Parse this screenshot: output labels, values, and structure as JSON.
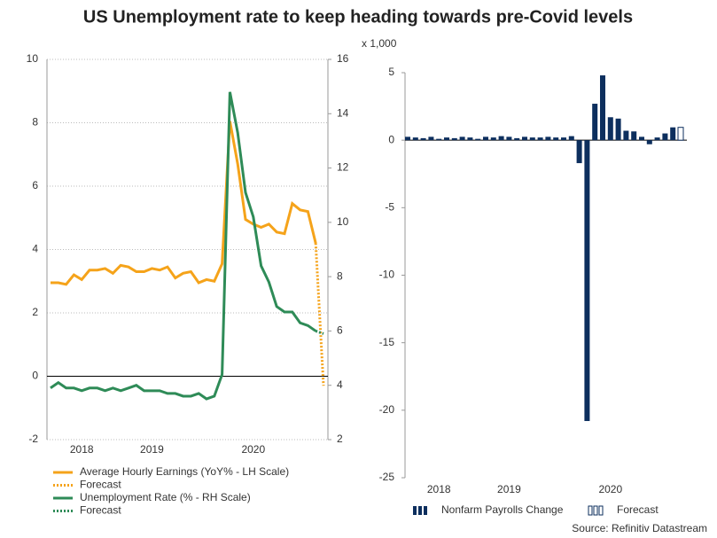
{
  "title": "US Unemployment rate to keep heading towards pre-Covid levels",
  "source": "Source: Refinitiv Datastream",
  "chart_data": [
    {
      "type": "line",
      "categories": [
        null,
        null,
        null,
        null,
        "2018",
        null,
        null,
        null,
        null,
        null,
        null,
        null,
        null,
        "2019",
        null,
        null,
        null,
        null,
        null,
        null,
        null,
        null,
        null,
        null,
        null,
        null,
        "2020",
        null,
        null,
        null,
        null,
        null,
        null,
        null,
        null,
        null
      ],
      "ylim": [
        -2,
        10
      ],
      "yticks": [
        -2,
        0,
        2,
        4,
        6,
        8,
        10
      ],
      "y2lim": [
        2,
        16
      ],
      "y2ticks": [
        2,
        4,
        6,
        8,
        10,
        12,
        14,
        16
      ],
      "grid": true,
      "series": [
        {
          "name": "Average Hourly Earnings (YoY% - LH Scale)",
          "color": "#f5a31a",
          "style": "solid",
          "values": [
            2.95,
            2.95,
            2.9,
            3.2,
            3.05,
            3.35,
            3.35,
            3.4,
            3.25,
            3.5,
            3.45,
            3.3,
            3.3,
            3.4,
            3.35,
            3.45,
            3.1,
            3.25,
            3.3,
            2.95,
            3.05,
            3.0,
            3.55,
            8.05,
            6.7,
            4.95,
            4.8,
            4.7,
            4.8,
            4.55,
            4.5,
            5.45,
            5.25,
            5.2,
            4.2,
            null
          ]
        },
        {
          "name": "Forecast",
          "color": "#f5a31a",
          "style": "dotted",
          "values": [
            null,
            null,
            null,
            null,
            null,
            null,
            null,
            null,
            null,
            null,
            null,
            null,
            null,
            null,
            null,
            null,
            null,
            null,
            null,
            null,
            null,
            null,
            null,
            null,
            null,
            null,
            null,
            null,
            null,
            null,
            null,
            null,
            null,
            null,
            4.2,
            -0.3
          ]
        },
        {
          "name": "Unemployment Rate (% - RH Scale)",
          "color": "#2e8b57",
          "style": "solid",
          "axis": "y2",
          "values": [
            3.9,
            4.1,
            3.9,
            3.9,
            3.8,
            3.9,
            3.9,
            3.8,
            3.9,
            3.8,
            3.9,
            4.0,
            3.8,
            3.8,
            3.8,
            3.7,
            3.7,
            3.6,
            3.6,
            3.7,
            3.5,
            3.6,
            4.4,
            14.8,
            13.3,
            11.1,
            10.2,
            8.4,
            7.8,
            6.9,
            6.7,
            6.7,
            6.3,
            6.2,
            6.0,
            null
          ]
        },
        {
          "name": "Forecast",
          "color": "#2e8b57",
          "style": "dotted",
          "axis": "y2",
          "values": [
            null,
            null,
            null,
            null,
            null,
            null,
            null,
            null,
            null,
            null,
            null,
            null,
            null,
            null,
            null,
            null,
            null,
            null,
            null,
            null,
            null,
            null,
            null,
            null,
            null,
            null,
            null,
            null,
            null,
            null,
            null,
            null,
            null,
            null,
            6.0,
            5.9
          ]
        }
      ]
    },
    {
      "type": "bar",
      "y_label": "x 1,000",
      "categories": [
        null,
        null,
        null,
        null,
        "2018",
        null,
        null,
        null,
        null,
        null,
        null,
        null,
        null,
        "2019",
        null,
        null,
        null,
        null,
        null,
        null,
        null,
        null,
        null,
        null,
        null,
        null,
        "2020",
        null,
        null,
        null,
        null,
        null,
        null,
        null,
        null,
        null
      ],
      "ylim": [
        -25,
        5
      ],
      "yticks": [
        -25,
        -20,
        -15,
        -10,
        -5,
        0,
        5
      ],
      "grid": false,
      "series": [
        {
          "name": "Nonfarm Payrolls Change",
          "color": "#0d2f5e",
          "style": "solid",
          "values": [
            0.25,
            0.2,
            0.15,
            0.25,
            0.1,
            0.2,
            0.15,
            0.25,
            0.2,
            0.1,
            0.25,
            0.2,
            0.3,
            0.25,
            0.15,
            0.25,
            0.2,
            0.2,
            0.25,
            0.2,
            0.2,
            0.3,
            -1.7,
            -20.8,
            2.7,
            4.8,
            1.7,
            1.6,
            0.7,
            0.65,
            0.25,
            -0.3,
            0.2,
            0.5,
            0.95,
            null
          ]
        },
        {
          "name": "Forecast",
          "color": "#0d2f5e",
          "style": "outline",
          "values": [
            null,
            null,
            null,
            null,
            null,
            null,
            null,
            null,
            null,
            null,
            null,
            null,
            null,
            null,
            null,
            null,
            null,
            null,
            null,
            null,
            null,
            null,
            null,
            null,
            null,
            null,
            null,
            null,
            null,
            null,
            null,
            null,
            null,
            null,
            null,
            0.95
          ]
        }
      ]
    }
  ]
}
